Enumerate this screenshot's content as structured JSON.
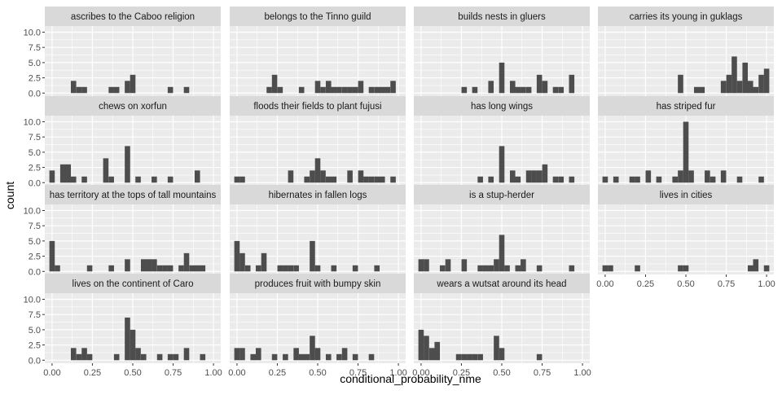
{
  "chart_data": {
    "type": "bar",
    "subtype": "faceted-histogram",
    "xlabel": "conditional_probability_nme",
    "ylabel": "count",
    "xlim": [
      0,
      1
    ],
    "ylim": [
      0,
      10
    ],
    "x_ticks": [
      "0.00",
      "0.25",
      "0.50",
      "0.75",
      "1.00"
    ],
    "y_ticks": [
      "0.0",
      "2.5",
      "5.0",
      "7.5",
      "10.0"
    ],
    "bin_width": 0.0333,
    "grid": true,
    "legend": "none",
    "colors": {
      "bar": "#4d4d4d",
      "panel_bg": "#ebebeb",
      "strip_bg": "#d9d9d9",
      "grid": "#ffffff",
      "text": "#4d4d4d"
    },
    "facets": [
      {
        "title": "ascribes to the Caboo religion",
        "bins": [
          [
            0.133,
            2
          ],
          [
            0.167,
            1
          ],
          [
            0.2,
            1
          ],
          [
            0.367,
            1
          ],
          [
            0.4,
            1
          ],
          [
            0.467,
            2
          ],
          [
            0.5,
            3
          ],
          [
            0.733,
            1
          ],
          [
            0.833,
            1
          ]
        ]
      },
      {
        "title": "belongs to the Tinno guild",
        "bins": [
          [
            0.2,
            1
          ],
          [
            0.233,
            3
          ],
          [
            0.267,
            1
          ],
          [
            0.4,
            1
          ],
          [
            0.5,
            2
          ],
          [
            0.533,
            1
          ],
          [
            0.567,
            2
          ],
          [
            0.6,
            1
          ],
          [
            0.633,
            1
          ],
          [
            0.667,
            1
          ],
          [
            0.7,
            1
          ],
          [
            0.733,
            1
          ],
          [
            0.767,
            2
          ],
          [
            0.833,
            1
          ],
          [
            0.867,
            1
          ],
          [
            0.9,
            1
          ],
          [
            0.933,
            1
          ],
          [
            0.967,
            2
          ]
        ]
      },
      {
        "title": "builds nests in gluers",
        "bins": [
          [
            0.267,
            1
          ],
          [
            0.333,
            1
          ],
          [
            0.433,
            2
          ],
          [
            0.5,
            5
          ],
          [
            0.567,
            2
          ],
          [
            0.6,
            1
          ],
          [
            0.633,
            1
          ],
          [
            0.667,
            1
          ],
          [
            0.733,
            3
          ],
          [
            0.767,
            2
          ],
          [
            0.833,
            1
          ],
          [
            0.867,
            1
          ],
          [
            0.933,
            3
          ]
        ]
      },
      {
        "title": "carries its young in guklags",
        "bins": [
          [
            0.467,
            3
          ],
          [
            0.567,
            1
          ],
          [
            0.6,
            1
          ],
          [
            0.733,
            2
          ],
          [
            0.767,
            3
          ],
          [
            0.8,
            6
          ],
          [
            0.833,
            2
          ],
          [
            0.867,
            5
          ],
          [
            0.9,
            2
          ],
          [
            0.933,
            1
          ],
          [
            0.967,
            3
          ],
          [
            1.0,
            4
          ]
        ]
      },
      {
        "title": "chews on xorfun",
        "bins": [
          [
            0.0,
            2
          ],
          [
            0.067,
            3
          ],
          [
            0.1,
            3
          ],
          [
            0.133,
            1
          ],
          [
            0.2,
            1
          ],
          [
            0.333,
            4
          ],
          [
            0.367,
            1
          ],
          [
            0.467,
            6
          ],
          [
            0.533,
            1
          ],
          [
            0.633,
            1
          ],
          [
            0.733,
            1
          ],
          [
            0.9,
            2
          ]
        ]
      },
      {
        "title": "floods their fields to plant fujusi",
        "bins": [
          [
            0.0,
            1
          ],
          [
            0.033,
            1
          ],
          [
            0.333,
            2
          ],
          [
            0.433,
            1
          ],
          [
            0.467,
            2
          ],
          [
            0.5,
            4
          ],
          [
            0.533,
            2
          ],
          [
            0.567,
            1
          ],
          [
            0.6,
            1
          ],
          [
            0.7,
            2
          ],
          [
            0.767,
            2
          ],
          [
            0.8,
            1
          ],
          [
            0.833,
            1
          ],
          [
            0.867,
            1
          ],
          [
            0.9,
            1
          ],
          [
            0.967,
            1
          ]
        ]
      },
      {
        "title": "has long wings",
        "bins": [
          [
            0.367,
            1
          ],
          [
            0.433,
            1
          ],
          [
            0.5,
            6
          ],
          [
            0.567,
            2
          ],
          [
            0.6,
            1
          ],
          [
            0.667,
            2
          ],
          [
            0.7,
            2
          ],
          [
            0.733,
            2
          ],
          [
            0.767,
            3
          ],
          [
            0.833,
            1
          ],
          [
            0.867,
            1
          ],
          [
            0.933,
            1
          ]
        ]
      },
      {
        "title": "has striped fur",
        "bins": [
          [
            0.0,
            1
          ],
          [
            0.067,
            1
          ],
          [
            0.167,
            1
          ],
          [
            0.2,
            1
          ],
          [
            0.267,
            2
          ],
          [
            0.333,
            1
          ],
          [
            0.433,
            1
          ],
          [
            0.467,
            2
          ],
          [
            0.5,
            10
          ],
          [
            0.533,
            2
          ],
          [
            0.633,
            2
          ],
          [
            0.667,
            1
          ],
          [
            0.733,
            2
          ],
          [
            0.833,
            1
          ],
          [
            0.967,
            1
          ]
        ]
      },
      {
        "title": "has territory at the tops of tall mountains",
        "bins": [
          [
            0.0,
            5
          ],
          [
            0.033,
            1
          ],
          [
            0.233,
            1
          ],
          [
            0.367,
            1
          ],
          [
            0.467,
            2
          ],
          [
            0.567,
            2
          ],
          [
            0.6,
            2
          ],
          [
            0.633,
            2
          ],
          [
            0.667,
            1
          ],
          [
            0.7,
            1
          ],
          [
            0.733,
            1
          ],
          [
            0.8,
            1
          ],
          [
            0.833,
            3
          ],
          [
            0.867,
            1
          ],
          [
            0.9,
            1
          ],
          [
            0.933,
            1
          ]
        ]
      },
      {
        "title": "hibernates in fallen logs",
        "bins": [
          [
            0.0,
            5
          ],
          [
            0.033,
            3
          ],
          [
            0.067,
            1
          ],
          [
            0.133,
            1
          ],
          [
            0.167,
            3
          ],
          [
            0.267,
            1
          ],
          [
            0.3,
            1
          ],
          [
            0.333,
            1
          ],
          [
            0.367,
            1
          ],
          [
            0.467,
            5
          ],
          [
            0.5,
            1
          ],
          [
            0.6,
            1
          ],
          [
            0.733,
            1
          ],
          [
            0.867,
            1
          ]
        ]
      },
      {
        "title": "is a stup-herder",
        "bins": [
          [
            0.0,
            2
          ],
          [
            0.033,
            2
          ],
          [
            0.133,
            1
          ],
          [
            0.167,
            2
          ],
          [
            0.267,
            2
          ],
          [
            0.367,
            1
          ],
          [
            0.4,
            1
          ],
          [
            0.433,
            1
          ],
          [
            0.467,
            2
          ],
          [
            0.5,
            6
          ],
          [
            0.533,
            1
          ],
          [
            0.6,
            1
          ],
          [
            0.633,
            2
          ],
          [
            0.733,
            1
          ],
          [
            0.933,
            1
          ]
        ]
      },
      {
        "title": "lives in cities",
        "bins": [
          [
            0.0,
            1
          ],
          [
            0.033,
            1
          ],
          [
            0.2,
            1
          ],
          [
            0.467,
            1
          ],
          [
            0.5,
            1
          ],
          [
            0.9,
            1
          ],
          [
            0.933,
            2
          ],
          [
            1.0,
            1
          ]
        ]
      },
      {
        "title": "lives on the continent of Caro",
        "bins": [
          [
            0.133,
            2
          ],
          [
            0.167,
            1
          ],
          [
            0.2,
            2
          ],
          [
            0.233,
            1
          ],
          [
            0.4,
            1
          ],
          [
            0.467,
            7
          ],
          [
            0.5,
            5
          ],
          [
            0.533,
            2
          ],
          [
            0.567,
            1
          ],
          [
            0.667,
            1
          ],
          [
            0.733,
            1
          ],
          [
            0.767,
            1
          ],
          [
            0.833,
            2
          ],
          [
            0.933,
            1
          ]
        ]
      },
      {
        "title": "produces fruit with bumpy skin",
        "bins": [
          [
            0.0,
            2
          ],
          [
            0.033,
            2
          ],
          [
            0.1,
            1
          ],
          [
            0.133,
            2
          ],
          [
            0.233,
            1
          ],
          [
            0.3,
            1
          ],
          [
            0.367,
            2
          ],
          [
            0.4,
            1
          ],
          [
            0.433,
            1
          ],
          [
            0.467,
            4
          ],
          [
            0.5,
            2
          ],
          [
            0.567,
            1
          ],
          [
            0.633,
            1
          ],
          [
            0.667,
            2
          ],
          [
            0.733,
            1
          ],
          [
            0.833,
            1
          ]
        ]
      },
      {
        "title": "wears a wutsat around its head",
        "bins": [
          [
            0.0,
            5
          ],
          [
            0.033,
            4
          ],
          [
            0.067,
            2
          ],
          [
            0.1,
            3
          ],
          [
            0.233,
            1
          ],
          [
            0.267,
            1
          ],
          [
            0.3,
            1
          ],
          [
            0.333,
            1
          ],
          [
            0.367,
            1
          ],
          [
            0.467,
            4
          ],
          [
            0.5,
            2
          ],
          [
            0.733,
            1
          ]
        ]
      }
    ]
  }
}
